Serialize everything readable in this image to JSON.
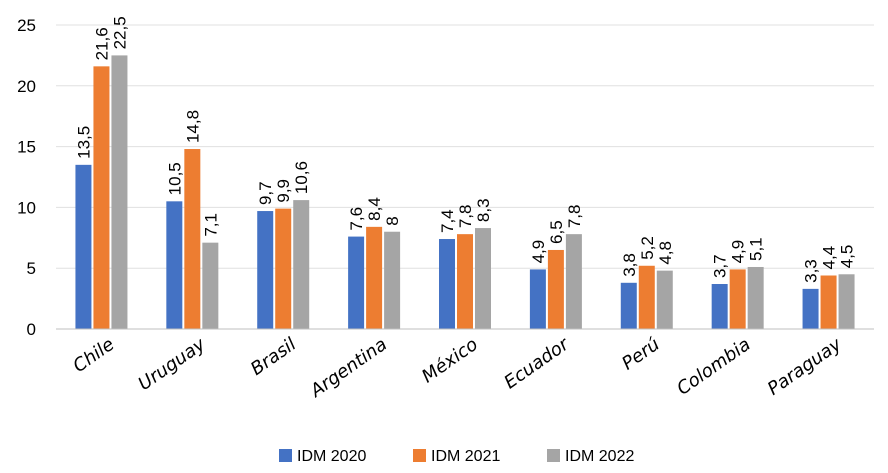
{
  "chart_data": {
    "type": "bar",
    "categories": [
      "Chile",
      "Uruguay",
      "Brasil",
      "Argentina",
      "México",
      "Ecuador",
      "Perú",
      "Colombia",
      "Paraguay"
    ],
    "series": [
      {
        "name": "IDM 2020",
        "color": "#4472C4",
        "values": [
          13.5,
          10.5,
          9.7,
          7.6,
          7.4,
          4.9,
          3.8,
          3.7,
          3.3
        ],
        "labels": [
          "13,5",
          "10,5",
          "9,7",
          "7,6",
          "7,4",
          "4,9",
          "3,8",
          "3,7",
          "3,3"
        ]
      },
      {
        "name": "IDM 2021",
        "color": "#ED7D31",
        "values": [
          21.6,
          14.8,
          9.9,
          8.4,
          7.8,
          6.5,
          5.2,
          4.9,
          4.4
        ],
        "labels": [
          "21,6",
          "14,8",
          "9,9",
          "8,4",
          "7,8",
          "6,5",
          "5,2",
          "4,9",
          "4,4"
        ]
      },
      {
        "name": "IDM 2022",
        "color": "#A5A5A5",
        "values": [
          22.5,
          7.1,
          10.6,
          8,
          8.3,
          7.8,
          4.8,
          5.1,
          4.5
        ],
        "labels": [
          "22,5",
          "7,1",
          "10,6",
          "8",
          "8,3",
          "7,8",
          "4,8",
          "5,1",
          "4,5"
        ]
      }
    ],
    "y_ticks": [
      0,
      5,
      10,
      15,
      20,
      25
    ],
    "y_tick_labels": [
      "0",
      "5",
      "10",
      "15",
      "20",
      "25"
    ],
    "ylim": [
      0,
      25
    ],
    "title": "",
    "xlabel": "",
    "ylabel": "",
    "grid": true,
    "legend_position": "bottom"
  }
}
